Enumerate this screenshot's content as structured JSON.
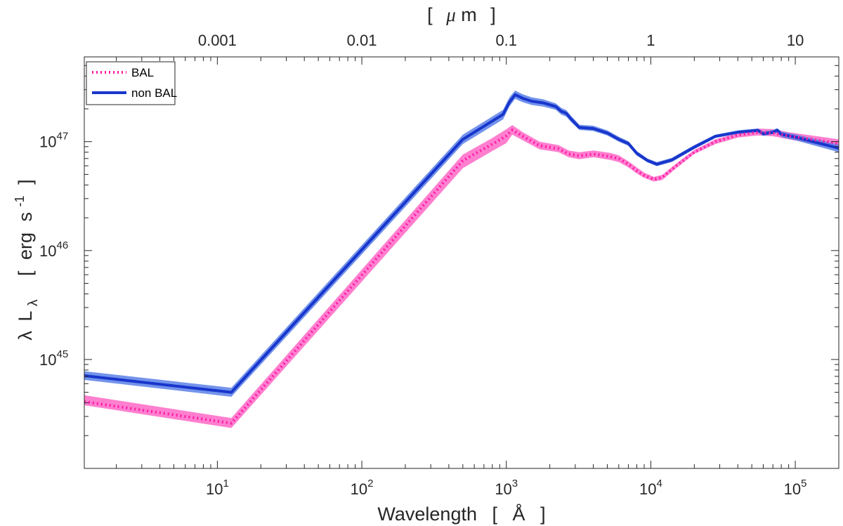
{
  "chart_data": {
    "type": "line",
    "xlabel_parts": [
      "Wavelength",
      "[",
      "Å",
      "]"
    ],
    "top_xlabel_parts": [
      "[",
      "μ",
      "m",
      "]"
    ],
    "ylabel_parts": [
      "λ",
      "L",
      "λ",
      "[",
      "erg",
      "s",
      "-1",
      "]"
    ],
    "xscale": "log",
    "yscale": "log",
    "xlim": [
      1.2,
      200000
    ],
    "ylim": [
      1e+44,
      6e+47
    ],
    "x_ticks": [
      {
        "value": 10,
        "base": "10",
        "exp": "1"
      },
      {
        "value": 100,
        "base": "10",
        "exp": "2"
      },
      {
        "value": 1000,
        "base": "10",
        "exp": "3"
      },
      {
        "value": 10000,
        "base": "10",
        "exp": "4"
      },
      {
        "value": 100000,
        "base": "10",
        "exp": "5"
      }
    ],
    "top_x_ticks": [
      {
        "value": 10,
        "label": "0.001"
      },
      {
        "value": 100,
        "label": "0.01"
      },
      {
        "value": 1000,
        "label": "0.1"
      },
      {
        "value": 10000,
        "label": "1"
      },
      {
        "value": 100000,
        "label": "10"
      }
    ],
    "y_ticks": [
      {
        "value": 1e+45,
        "base": "10",
        "exp": "45"
      },
      {
        "value": 1e+46,
        "base": "10",
        "exp": "46"
      },
      {
        "value": 1e+47,
        "base": "10",
        "exp": "47"
      }
    ],
    "legend": {
      "position": "top-left",
      "entries": [
        "BAL",
        "non BAL"
      ]
    },
    "series": [
      {
        "name": "BAL",
        "color": "#ff1aa6",
        "band_color": "#ff7fcf",
        "style": "dotted",
        "x": [
          1.2,
          12.5,
          500,
          800,
          1000,
          1100,
          1300,
          1700,
          2300,
          2700,
          3200,
          4000,
          5200,
          6000,
          7000,
          8000,
          9000,
          10500,
          12000,
          15000,
          20000,
          28000,
          40000,
          55000,
          70000,
          90000,
          200000
        ],
        "y": [
          4.1e+44,
          2.6e+44,
          6.7e+46,
          9.5e+46,
          1.13e+47,
          1.28e+47,
          1.12e+47,
          9.2e+46,
          8.6e+46,
          7.7e+46,
          7.4e+46,
          7.7e+46,
          7.3e+46,
          7e+46,
          6.2e+46,
          5.4e+46,
          4.9e+46,
          4.5e+46,
          4.7e+46,
          6e+46,
          8e+46,
          1e+47,
          1.15e+47,
          1.22e+47,
          1.2e+47,
          1.13e+47,
          9.6e+46
        ],
        "y_low": [
          3.8e+44,
          2.35e+44,
          5.7e+46,
          8.2e+46,
          9.7e+46,
          1.16e+47,
          1.03e+47,
          8.5e+46,
          8e+46,
          7.2e+46,
          6.9e+46,
          7.2e+46,
          6.8e+46,
          6.5e+46,
          5.8e+46,
          5.1e+46,
          4.65e+46,
          4.3e+46,
          4.45e+46,
          5.7e+46,
          7.7e+46,
          9.5e+46,
          1.09e+47,
          1.14e+47,
          1.12e+47,
          1.05e+47,
          8.6e+46
        ],
        "y_high": [
          4.7e+44,
          2.9e+44,
          7.6e+46,
          1.08e+47,
          1.3e+47,
          1.42e+47,
          1.22e+47,
          1e+47,
          9.3e+46,
          8.3e+46,
          8e+46,
          8.3e+46,
          7.9e+46,
          7.5e+46,
          6.6e+46,
          5.8e+46,
          5.2e+46,
          4.75e+46,
          4.95e+46,
          6.3e+46,
          8.4e+46,
          1.05e+47,
          1.2e+47,
          1.32e+47,
          1.3e+47,
          1.22e+47,
          1.05e+47
        ]
      },
      {
        "name": "non BAL",
        "color": "#1836cc",
        "band_color": "#5b80e8",
        "style": "solid",
        "x": [
          1.2,
          12.5,
          500,
          950,
          1050,
          1150,
          1300,
          1500,
          1800,
          2200,
          2400,
          2600,
          2800,
          3200,
          4000,
          5000,
          6000,
          7000,
          8000,
          9500,
          11000,
          14000,
          20000,
          28000,
          40000,
          55000,
          60000,
          70000,
          75000,
          80000,
          100000,
          200000
        ],
        "y": [
          7.1e+44,
          5e+44,
          1.05e+47,
          1.78e+47,
          2.3e+47,
          2.7e+47,
          2.5e+47,
          2.35e+47,
          2.27e+47,
          2.1e+47,
          1.9e+47,
          1.82e+47,
          1.62e+47,
          1.35e+47,
          1.32e+47,
          1.2e+47,
          1.05e+47,
          9.6e+46,
          7.8e+46,
          6.7e+46,
          6.2e+46,
          6.8e+46,
          8.9e+46,
          1.12e+47,
          1.22e+47,
          1.27e+47,
          1.18e+47,
          1.22e+47,
          1.27e+47,
          1.17e+47,
          1.1e+47,
          8.7e+46
        ],
        "y_low": [
          6.5e+44,
          4.55e+44,
          9.5e+46,
          1.6e+47,
          2.1e+47,
          2.47e+47,
          2.3e+47,
          2.17e+47,
          2.1e+47,
          1.96e+47,
          1.77e+47,
          1.7e+47,
          1.52e+47,
          1.28e+47,
          1.25e+47,
          1.14e+47,
          1e+47,
          9.15e+46,
          7.45e+46,
          6.45e+46,
          5.95e+46,
          6.5e+46,
          8.55e+46,
          1.08e+47,
          1.18e+47,
          1.22e+47,
          1.13e+47,
          1.17e+47,
          1.21e+47,
          1.1e+47,
          1.03e+47,
          8e+46
        ],
        "y_high": [
          7.8e+44,
          5.5e+44,
          1.16e+47,
          1.96e+47,
          2.55e+47,
          2.95e+47,
          2.72e+47,
          2.55e+47,
          2.45e+47,
          2.25e+47,
          2.04e+47,
          1.95e+47,
          1.73e+47,
          1.43e+47,
          1.4e+47,
          1.27e+47,
          1.11e+47,
          1.01e+47,
          8.2e+46,
          7e+46,
          6.5e+46,
          7.1e+46,
          9.3e+46,
          1.16e+47,
          1.27e+47,
          1.32e+47,
          1.24e+47,
          1.28e+47,
          1.33e+47,
          1.24e+47,
          1.17e+47,
          9.4e+46
        ]
      }
    ]
  }
}
